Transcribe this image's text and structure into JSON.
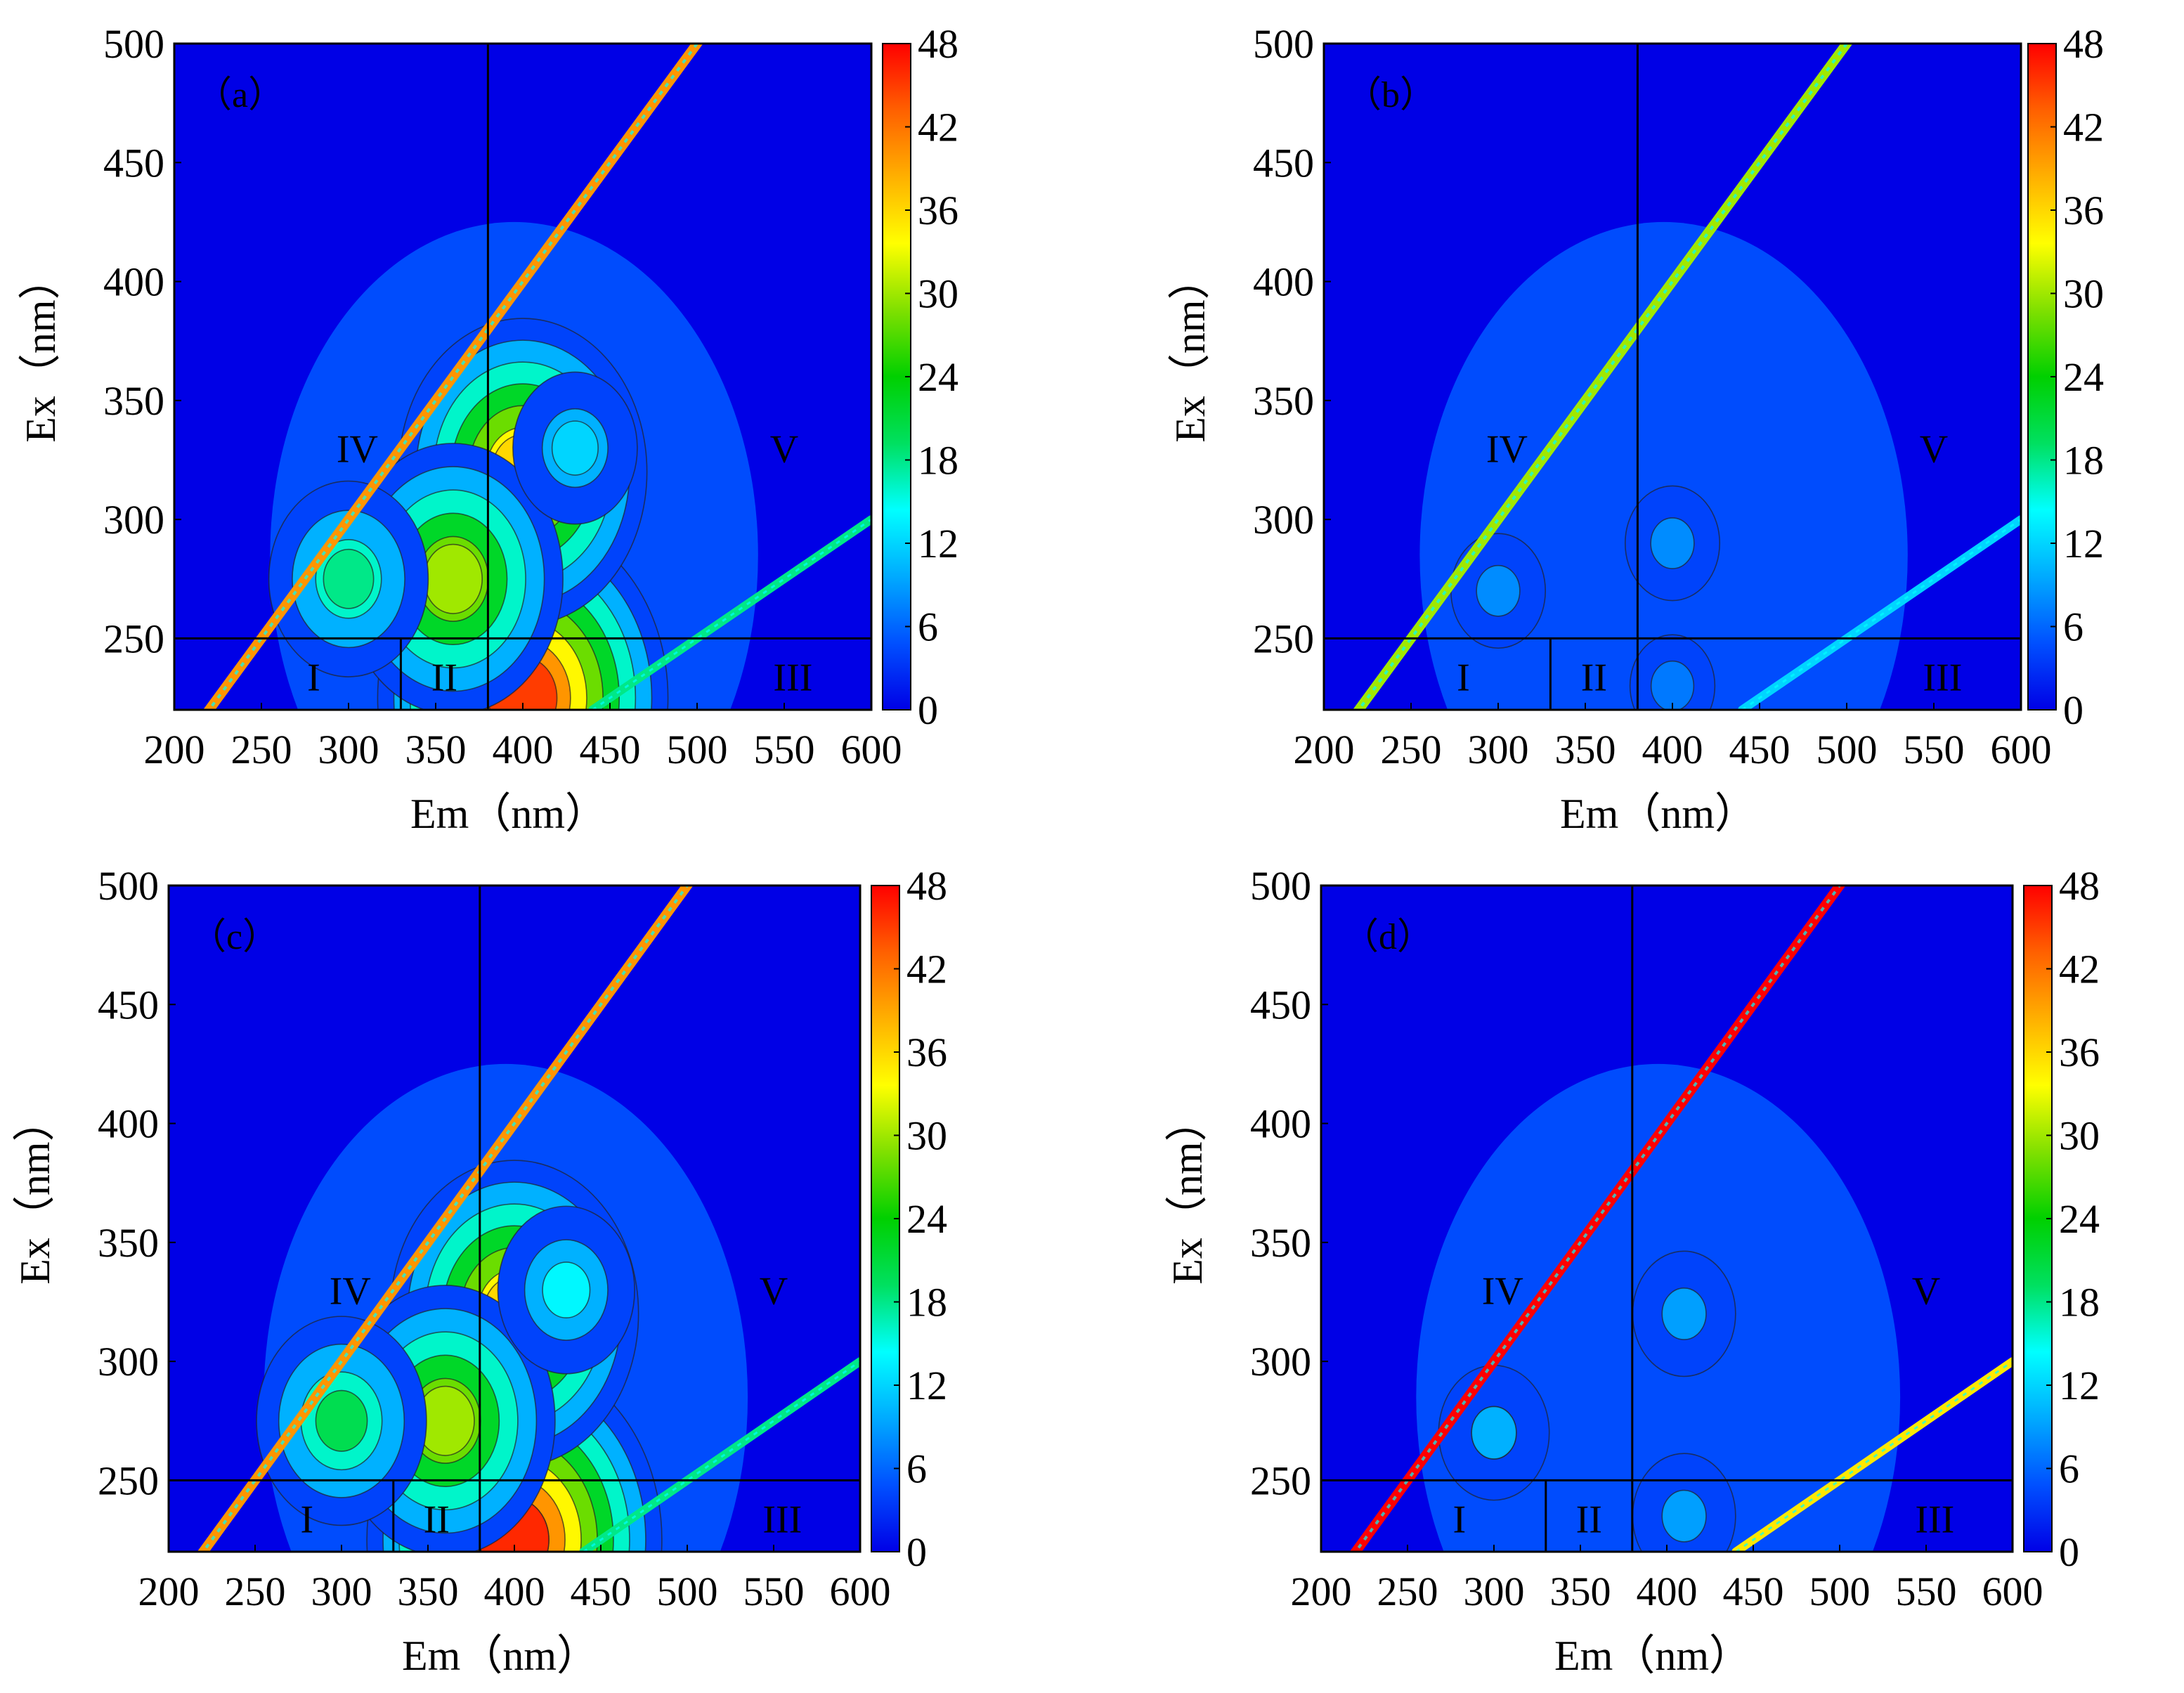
{
  "figure": {
    "units_label": "nm"
  },
  "colorbar": {
    "min": 0,
    "max": 48,
    "ticks": [
      "0",
      "6",
      "12",
      "18",
      "24",
      "30",
      "36",
      "42",
      "48"
    ],
    "colors": [
      "#0000e6",
      "#0050ff",
      "#00aaff",
      "#00ffff",
      "#00e060",
      "#00d000",
      "#80e000",
      "#ffff00",
      "#ffb000",
      "#ff6000",
      "#ff0000"
    ]
  },
  "region_labels": [
    "I",
    "II",
    "III",
    "IV",
    "V"
  ],
  "chart_data": [
    {
      "type": "heatmap",
      "panel_label": "（a）",
      "xlabel": "Em（nm）",
      "ylabel": "Ex（nm）",
      "xlim": [
        200,
        600
      ],
      "ylim": [
        220,
        500
      ],
      "xticks": [
        "200",
        "250",
        "300",
        "350",
        "400",
        "450",
        "500",
        "550",
        "600"
      ],
      "yticks": [
        "250",
        "300",
        "350",
        "400",
        "450",
        "500"
      ],
      "region_boundaries": {
        "em": [
          330,
          380
        ],
        "ex": 250
      },
      "regions": [
        {
          "label": "I",
          "em": 280,
          "ex": 234
        },
        {
          "label": "II",
          "em": 355,
          "ex": 234
        },
        {
          "label": "III",
          "em": 555,
          "ex": 234
        },
        {
          "label": "IV",
          "em": 305,
          "ex": 330
        },
        {
          "label": "V",
          "em": 550,
          "ex": 330
        }
      ],
      "peaks": [
        {
          "em": 400,
          "ex": 225,
          "intensity": 45
        },
        {
          "em": 400,
          "ex": 320,
          "intensity": 36
        },
        {
          "em": 360,
          "ex": 275,
          "intensity": 30
        },
        {
          "em": 300,
          "ex": 275,
          "intensity": 18
        },
        {
          "em": 430,
          "ex": 330,
          "intensity": 12
        }
      ],
      "rayleigh_intensity": 40,
      "second_order_intensity": 18
    },
    {
      "type": "heatmap",
      "panel_label": "（b）",
      "xlabel": "Em（nm）",
      "ylabel": "Ex（nm）",
      "xlim": [
        200,
        600
      ],
      "ylim": [
        220,
        500
      ],
      "xticks": [
        "200",
        "250",
        "300",
        "350",
        "400",
        "450",
        "500",
        "550",
        "600"
      ],
      "yticks": [
        "250",
        "300",
        "350",
        "400",
        "450",
        "500"
      ],
      "region_boundaries": {
        "em": [
          330,
          380
        ],
        "ex": 250
      },
      "regions": [
        {
          "label": "I",
          "em": 280,
          "ex": 234
        },
        {
          "label": "II",
          "em": 355,
          "ex": 234
        },
        {
          "label": "III",
          "em": 555,
          "ex": 234
        },
        {
          "label": "IV",
          "em": 305,
          "ex": 330
        },
        {
          "label": "V",
          "em": 550,
          "ex": 330
        }
      ],
      "peaks": [
        {
          "em": 400,
          "ex": 290,
          "intensity": 8
        },
        {
          "em": 400,
          "ex": 230,
          "intensity": 7
        },
        {
          "em": 300,
          "ex": 270,
          "intensity": 8
        }
      ],
      "rayleigh_intensity": 30,
      "second_order_intensity": 12
    },
    {
      "type": "heatmap",
      "panel_label": "（c）",
      "xlabel": "Em（nm）",
      "ylabel": "Ex（nm）",
      "xlim": [
        200,
        600
      ],
      "ylim": [
        220,
        500
      ],
      "xticks": [
        "200",
        "250",
        "300",
        "350",
        "400",
        "450",
        "500",
        "550",
        "600"
      ],
      "yticks": [
        "250",
        "300",
        "350",
        "400",
        "450",
        "500"
      ],
      "region_boundaries": {
        "em": [
          330,
          380
        ],
        "ex": 250
      },
      "regions": [
        {
          "label": "I",
          "em": 280,
          "ex": 234
        },
        {
          "label": "II",
          "em": 355,
          "ex": 234
        },
        {
          "label": "III",
          "em": 555,
          "ex": 234
        },
        {
          "label": "IV",
          "em": 305,
          "ex": 330
        },
        {
          "label": "V",
          "em": 550,
          "ex": 330
        }
      ],
      "peaks": [
        {
          "em": 400,
          "ex": 225,
          "intensity": 46
        },
        {
          "em": 400,
          "ex": 320,
          "intensity": 36
        },
        {
          "em": 360,
          "ex": 275,
          "intensity": 30
        },
        {
          "em": 300,
          "ex": 275,
          "intensity": 20
        },
        {
          "em": 430,
          "ex": 330,
          "intensity": 14
        }
      ],
      "rayleigh_intensity": 40,
      "second_order_intensity": 18
    },
    {
      "type": "heatmap",
      "panel_label": "（d）",
      "xlabel": "Em（nm）",
      "ylabel": "Ex（nm）",
      "xlim": [
        200,
        600
      ],
      "ylim": [
        220,
        500
      ],
      "xticks": [
        "200",
        "250",
        "300",
        "350",
        "400",
        "450",
        "500",
        "550",
        "600"
      ],
      "yticks": [
        "250",
        "300",
        "350",
        "400",
        "450",
        "500"
      ],
      "region_boundaries": {
        "em": [
          330,
          380
        ],
        "ex": 250
      },
      "regions": [
        {
          "label": "I",
          "em": 280,
          "ex": 234
        },
        {
          "label": "II",
          "em": 355,
          "ex": 234
        },
        {
          "label": "III",
          "em": 555,
          "ex": 234
        },
        {
          "label": "IV",
          "em": 305,
          "ex": 330
        },
        {
          "label": "V",
          "em": 550,
          "ex": 330
        }
      ],
      "peaks": [
        {
          "em": 410,
          "ex": 320,
          "intensity": 9
        },
        {
          "em": 410,
          "ex": 235,
          "intensity": 9
        },
        {
          "em": 300,
          "ex": 270,
          "intensity": 10
        }
      ],
      "rayleigh_intensity": 60,
      "second_order_intensity": 35
    }
  ]
}
